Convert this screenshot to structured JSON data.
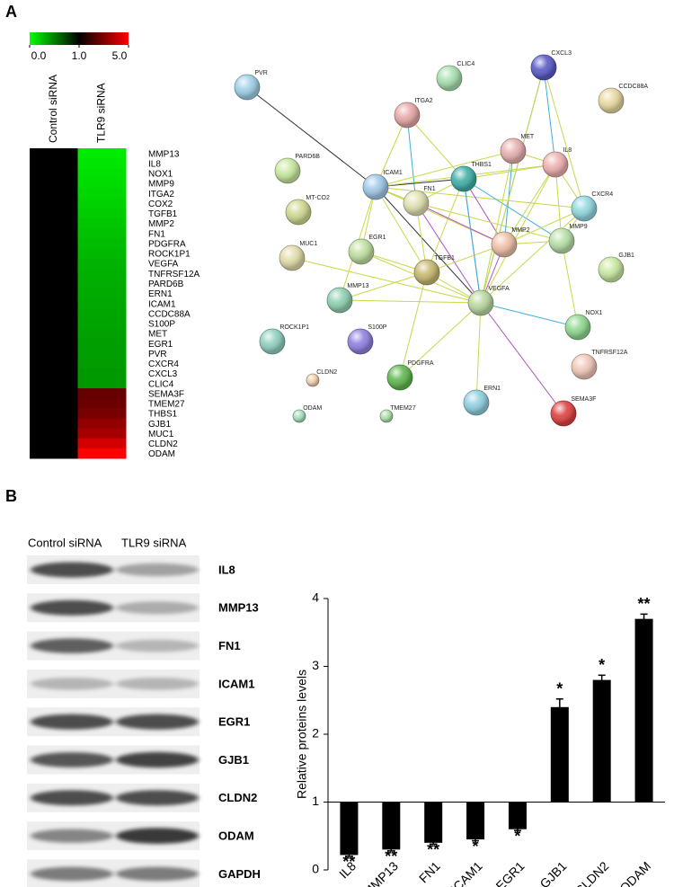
{
  "panel_labels": [
    "A",
    "B"
  ],
  "chart_data": [
    {
      "type": "heatmap",
      "colors": [
        "#00ff00",
        "#000000",
        "#ff0000"
      ],
      "colorbar_ticks": [
        {
          "value": 0,
          "label": "0.0"
        },
        {
          "value": 1,
          "label": "1.0"
        },
        {
          "value": 5,
          "label": "5.0"
        }
      ],
      "columns": [
        "Control siRNA",
        "TLR9 siRNA"
      ],
      "rows": [
        "MMP13",
        "IL8",
        "NOX1",
        "MMP9",
        "ITGA2",
        "COX2",
        "TGFB1",
        "MMP2",
        "FN1",
        "PDGFRA",
        "ROCK1P1",
        "VEGFA",
        "TNFRSF12A",
        "PARD6B",
        "ERN1",
        "ICAM1",
        "CCDC88A",
        "S100P",
        "MET",
        "EGR1",
        "PVR",
        "CXCR4",
        "CXCL3",
        "CLIC4",
        "SEMA3F",
        "TMEM27",
        "THBS1",
        "GJB1",
        "MUC1",
        "CLDN2",
        "ODAM"
      ],
      "values": [
        [
          1,
          0.08
        ],
        [
          1,
          0.1
        ],
        [
          1,
          0.12
        ],
        [
          1,
          0.14
        ],
        [
          1,
          0.16
        ],
        [
          1,
          0.18
        ],
        [
          1,
          0.2
        ],
        [
          1,
          0.22
        ],
        [
          1,
          0.24
        ],
        [
          1,
          0.26
        ],
        [
          1,
          0.28
        ],
        [
          1,
          0.3
        ],
        [
          1,
          0.31
        ],
        [
          1,
          0.32
        ],
        [
          1,
          0.33
        ],
        [
          1,
          0.34
        ],
        [
          1,
          0.35
        ],
        [
          1,
          0.36
        ],
        [
          1,
          0.37
        ],
        [
          1,
          0.38
        ],
        [
          1,
          0.38
        ],
        [
          1,
          0.39
        ],
        [
          1,
          0.4
        ],
        [
          1,
          0.4
        ],
        [
          1,
          2.6
        ],
        [
          1,
          2.7
        ],
        [
          1,
          2.9
        ],
        [
          1,
          3.3
        ],
        [
          1,
          3.6
        ],
        [
          1,
          4.3
        ],
        [
          1,
          5.0
        ]
      ]
    },
    {
      "type": "network",
      "nodes": [
        {
          "label": "PVR",
          "color": "#9fd0e8"
        },
        {
          "label": "CLIC4",
          "color": "#a8e0b0"
        },
        {
          "label": "CXCL3",
          "color": "#5a5ac8"
        },
        {
          "label": "CCDC88A",
          "color": "#e8d8a0"
        },
        {
          "label": "ITGA2",
          "color": "#e8a8a8"
        },
        {
          "label": "MET",
          "color": "#e8b0b0"
        },
        {
          "label": "IL8",
          "color": "#f0b0b0"
        },
        {
          "label": "PARD6B",
          "color": "#c8e8a0"
        },
        {
          "label": "ICAM1",
          "color": "#a0c8e8"
        },
        {
          "label": "THBS1",
          "color": "#40b0a8"
        },
        {
          "label": "FN1",
          "color": "#e0e0b0"
        },
        {
          "label": "CXCR4",
          "color": "#90d8e0"
        },
        {
          "label": "MT-CO2",
          "color": "#d0d890"
        },
        {
          "label": "MMP9",
          "color": "#b8e0a8"
        },
        {
          "label": "MMP2",
          "color": "#f0c0a8"
        },
        {
          "label": "EGR1",
          "color": "#c0e0a0"
        },
        {
          "label": "MUC1",
          "color": "#e0dca8"
        },
        {
          "label": "TGFB1",
          "color": "#c8b870"
        },
        {
          "label": "GJB1",
          "color": "#c8e8a0"
        },
        {
          "label": "MMP13",
          "color": "#90d0b0"
        },
        {
          "label": "VEGFA",
          "color": "#b8d8a0"
        },
        {
          "label": "NOX1",
          "color": "#90d890"
        },
        {
          "label": "ROCK1P1",
          "color": "#90d0c0"
        },
        {
          "label": "S100P",
          "color": "#9080e0"
        },
        {
          "label": "TNFRSF12A",
          "color": "#f0c8b8"
        },
        {
          "label": "CLDN2",
          "color": "#f0d0b0"
        },
        {
          "label": "PDGFRA",
          "color": "#60b850"
        },
        {
          "label": "ERN1",
          "color": "#90d0e0"
        },
        {
          "label": "SEMA3F",
          "color": "#e04040"
        },
        {
          "label": "ODAM",
          "color": "#a8e0c0"
        },
        {
          "label": "TMEM27",
          "color": "#b0e0b0"
        }
      ]
    },
    {
      "type": "blot",
      "columns": [
        "Control siRNA",
        "TLR9 siRNA"
      ],
      "rows": [
        "IL8",
        "MMP13",
        "FN1",
        "ICAM1",
        "EGR1",
        "GJB1",
        "CLDN2",
        "ODAM",
        "GAPDH"
      ]
    },
    {
      "type": "bar",
      "categories": [
        "IL8",
        "MMP13",
        "FN1",
        "ICAM1",
        "EGR1",
        "GJB1",
        "CLDN2",
        "ODAM"
      ],
      "values": [
        0.22,
        0.3,
        0.4,
        0.45,
        0.6,
        2.4,
        2.8,
        3.7
      ],
      "errors": [
        0.02,
        0.02,
        0.02,
        0.02,
        0.02,
        0.12,
        0.07,
        0.07
      ],
      "annotations": [
        "**",
        "**",
        "**",
        "*",
        "*",
        "*",
        "*",
        "**"
      ],
      "ylabel": "Relative proteins levels",
      "ylim": [
        0,
        4
      ],
      "yticks": [
        0,
        1,
        2,
        3,
        4
      ],
      "baseline": 1,
      "color": "#000000"
    }
  ]
}
